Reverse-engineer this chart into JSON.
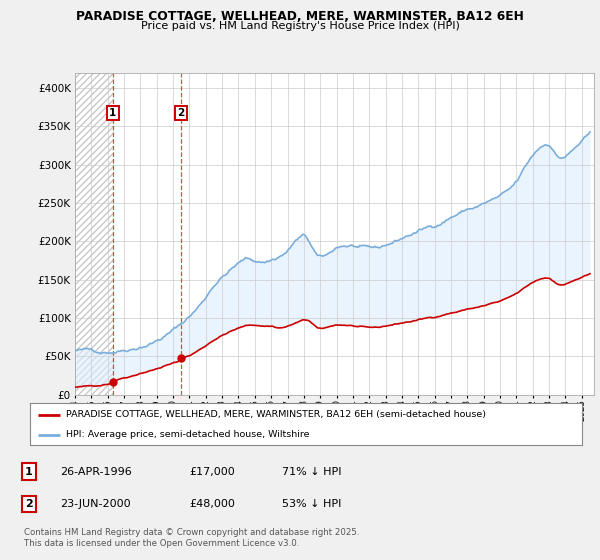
{
  "title1": "PARADISE COTTAGE, WELLHEAD, MERE, WARMINSTER, BA12 6EH",
  "title2": "Price paid vs. HM Land Registry's House Price Index (HPI)",
  "bg_color": "#f0f0f0",
  "plot_bg_color": "#ffffff",
  "legend_line1": "PARADISE COTTAGE, WELLHEAD, MERE, WARMINSTER, BA12 6EH (semi-detached house)",
  "legend_line2": "HPI: Average price, semi-detached house, Wiltshire",
  "footer": "Contains HM Land Registry data © Crown copyright and database right 2025.\nThis data is licensed under the Open Government Licence v3.0.",
  "red_color": "#cc0000",
  "blue_color": "#7aaddb",
  "blue_fill": "#ddeeff",
  "hatch_gray": "#cccccc",
  "sale1_year": 1996.32,
  "sale1_price": 17000,
  "sale2_year": 2000.48,
  "sale2_price": 48000,
  "table": [
    [
      "1",
      "26-APR-1996",
      "£17,000",
      "71% ↓ HPI"
    ],
    [
      "2",
      "23-JUN-2000",
      "£48,000",
      "53% ↓ HPI"
    ]
  ],
  "ylim_max": 420000,
  "xlim_min": 1994.0,
  "xlim_max": 2025.75,
  "yticks": [
    0,
    50000,
    100000,
    150000,
    200000,
    250000,
    300000,
    350000,
    400000
  ]
}
